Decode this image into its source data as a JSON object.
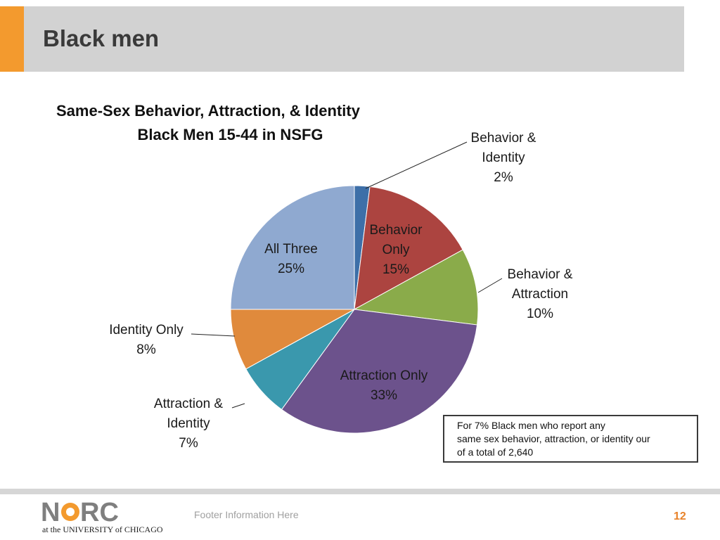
{
  "slide": {
    "title": "Black men",
    "note_lines": [
      "For 7% Black men who report any",
      "same sex behavior, attraction, or identity our",
      "of a total of 2,640"
    ],
    "footer_text": "Footer Information Here",
    "page_number": "12",
    "logo": {
      "text": "NORC",
      "subtitle": "at the UNIVERSITY of CHICAGO"
    },
    "accent_color": "#f39a2e"
  },
  "chart_data": {
    "type": "pie",
    "title": "Same-Sex Behavior, Attraction, & Identity",
    "subtitle": "Black Men 15-44 in NSFG",
    "slices": [
      {
        "label": "Behavior & Identity",
        "value": 2,
        "display": "2%",
        "color": "#3d6fa8",
        "label_lines": [
          "Behavior &",
          "Identity",
          "2%"
        ]
      },
      {
        "label": "Behavior Only",
        "value": 15,
        "display": "15%",
        "color": "#ac4440",
        "label_lines": [
          "Behavior",
          "Only",
          "15%"
        ]
      },
      {
        "label": "Behavior & Attraction",
        "value": 10,
        "display": "10%",
        "color": "#8aab4a",
        "label_lines": [
          "Behavior &",
          "Attraction",
          "10%"
        ]
      },
      {
        "label": "Attraction Only",
        "value": 33,
        "display": "33%",
        "color": "#6c528c",
        "label_lines": [
          "Attraction Only",
          "33%"
        ]
      },
      {
        "label": "Attraction & Identity",
        "value": 7,
        "display": "7%",
        "color": "#3a98ad",
        "label_lines": [
          "Attraction &",
          "Identity",
          "7%"
        ]
      },
      {
        "label": "Identity Only",
        "value": 8,
        "display": "8%",
        "color": "#e08a3c",
        "label_lines": [
          "Identity Only",
          "8%"
        ]
      },
      {
        "label": "All Three",
        "value": 25,
        "display": "25%",
        "color": "#8fa9d0",
        "label_lines": [
          "All Three",
          "25%"
        ]
      }
    ]
  }
}
